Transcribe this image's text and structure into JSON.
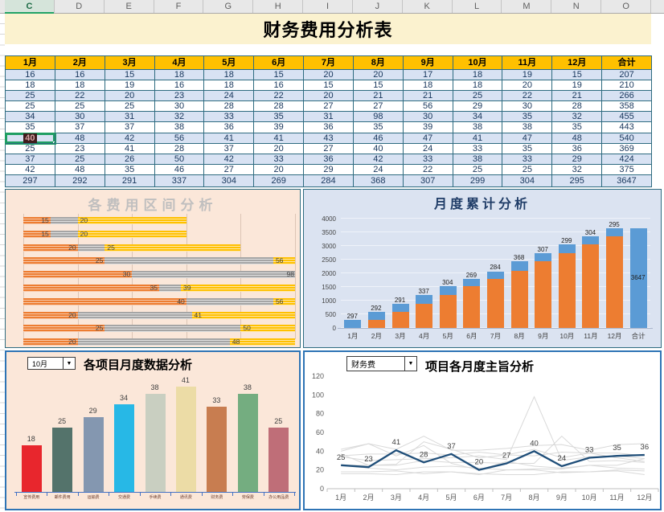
{
  "app": {
    "column_letters": [
      "C",
      "D",
      "E",
      "F",
      "G",
      "H",
      "I",
      "J",
      "K",
      "L",
      "M",
      "N",
      "O"
    ],
    "selected_column": "C"
  },
  "title": "财务费用分析表",
  "table": {
    "months": [
      "1月",
      "2月",
      "3月",
      "4月",
      "5月",
      "6月",
      "7月",
      "8月",
      "9月",
      "10月",
      "11月",
      "12月",
      "合计"
    ],
    "rows": [
      [
        16,
        16,
        15,
        18,
        18,
        15,
        20,
        20,
        17,
        18,
        19,
        15,
        207
      ],
      [
        18,
        18,
        19,
        16,
        18,
        16,
        15,
        15,
        18,
        18,
        20,
        19,
        210
      ],
      [
        25,
        22,
        20,
        23,
        24,
        22,
        20,
        21,
        21,
        25,
        22,
        21,
        266
      ],
      [
        25,
        25,
        25,
        30,
        28,
        28,
        27,
        27,
        56,
        29,
        30,
        28,
        358
      ],
      [
        34,
        30,
        31,
        32,
        33,
        35,
        31,
        98,
        30,
        34,
        35,
        32,
        455
      ],
      [
        35,
        37,
        37,
        38,
        36,
        39,
        36,
        35,
        39,
        38,
        38,
        35,
        443
      ],
      [
        40,
        48,
        42,
        56,
        41,
        41,
        43,
        46,
        47,
        41,
        47,
        48,
        540
      ],
      [
        25,
        23,
        41,
        28,
        37,
        20,
        27,
        40,
        24,
        33,
        35,
        36,
        369
      ],
      [
        37,
        25,
        26,
        50,
        42,
        33,
        36,
        42,
        33,
        38,
        33,
        29,
        424
      ],
      [
        42,
        48,
        35,
        46,
        27,
        20,
        29,
        24,
        22,
        25,
        25,
        32,
        375
      ]
    ],
    "totals": [
      297,
      292,
      291,
      337,
      304,
      269,
      284,
      368,
      307,
      299,
      304,
      295,
      3647
    ],
    "selected_cell": {
      "row_index": 6,
      "col_index": 0,
      "value": 40
    }
  },
  "chart_data": [
    {
      "type": "bar",
      "subtype": "horizontal-interval",
      "title": "各费用区间分析",
      "axis": {
        "min": 10,
        "max": 60,
        "step": 10,
        "gridlines": true
      },
      "series_colors": {
        "min_segment": "#ED7D31",
        "range_segment": "#A5A5A5",
        "beyond_segment": "#FFC000"
      },
      "rows": [
        {
          "min": 15,
          "max": 20
        },
        {
          "min": 15,
          "max": 20
        },
        {
          "min": 20,
          "max": 25
        },
        {
          "min": 25,
          "max": 56
        },
        {
          "min": 30,
          "max": 98
        },
        {
          "min": 35,
          "max": 39
        },
        {
          "min": 40,
          "max": 56
        },
        {
          "min": 20,
          "max": 41
        },
        {
          "min": 25,
          "max": 50
        },
        {
          "min": 20,
          "max": 48
        }
      ]
    },
    {
      "type": "bar",
      "subtype": "stacked-cumulative",
      "title": "月度累计分析",
      "categories": [
        "1月",
        "2月",
        "3月",
        "4月",
        "5月",
        "6月",
        "7月",
        "8月",
        "9月",
        "10月",
        "11月",
        "12月",
        "合计"
      ],
      "values": [
        297,
        292,
        291,
        337,
        304,
        269,
        284,
        368,
        307,
        299,
        304,
        295
      ],
      "grand_total": 3647,
      "ylim": [
        0,
        4000
      ],
      "ytick": 500,
      "yticks": [
        0,
        500,
        1000,
        1500,
        2000,
        2500,
        3000,
        3500,
        4000
      ],
      "colors": {
        "base": "#ED7D31",
        "value": "#5B9BD5"
      }
    },
    {
      "type": "bar",
      "title": "各项目月度数据分析",
      "selector_value": "10月",
      "categories": [
        "宣传费用",
        "邮件费用",
        "运输费",
        "交通费",
        "手续费",
        "通讯费",
        "财务费",
        "劳保费",
        "办公用品费"
      ],
      "values": [
        18,
        25,
        29,
        34,
        38,
        41,
        33,
        38,
        25
      ],
      "bar_colors": [
        "#e8262d",
        "#54736b",
        "#8497b0",
        "#27b8e6",
        "#c9cfc1",
        "#ecdca6",
        "#c87d50",
        "#74ad80",
        "#bf6e78"
      ],
      "ylim": [
        0,
        45
      ]
    },
    {
      "type": "line",
      "title": "项目各月度主旨分析",
      "selector_value": "财务费",
      "x": [
        "1月",
        "2月",
        "3月",
        "4月",
        "5月",
        "6月",
        "7月",
        "8月",
        "9月",
        "10月",
        "11月",
        "12月"
      ],
      "highlight": {
        "name": "财务费",
        "color": "#1F4E79",
        "values": [
          25,
          23,
          41,
          28,
          37,
          20,
          27,
          40,
          24,
          33,
          35,
          36
        ]
      },
      "background_series": [
        [
          16,
          16,
          15,
          18,
          18,
          15,
          20,
          20,
          17,
          18,
          19,
          15
        ],
        [
          18,
          18,
          19,
          16,
          18,
          16,
          15,
          15,
          18,
          18,
          20,
          19
        ],
        [
          25,
          22,
          20,
          23,
          24,
          22,
          20,
          21,
          21,
          25,
          22,
          21
        ],
        [
          25,
          25,
          25,
          30,
          28,
          28,
          27,
          27,
          56,
          29,
          30,
          28
        ],
        [
          34,
          30,
          31,
          32,
          33,
          35,
          31,
          98,
          30,
          34,
          35,
          32
        ],
        [
          35,
          37,
          37,
          38,
          36,
          39,
          36,
          35,
          39,
          38,
          38,
          35
        ],
        [
          40,
          48,
          42,
          56,
          41,
          41,
          43,
          46,
          47,
          41,
          47,
          48
        ],
        [
          37,
          25,
          26,
          50,
          42,
          33,
          36,
          42,
          33,
          38,
          33,
          29
        ],
        [
          42,
          48,
          35,
          46,
          27,
          20,
          29,
          24,
          22,
          25,
          25,
          32
        ]
      ],
      "background_color": "#d9d9d9",
      "ylim": [
        0,
        120
      ],
      "ytick": 20,
      "yticks": [
        0,
        20,
        40,
        60,
        80,
        100,
        120
      ]
    }
  ],
  "colors": {
    "header_fill": "#FFC000",
    "row_alt_fill": "#D8E2F3",
    "table_border": "#2E6B80",
    "title_fill": "#FBF2CF",
    "chart_peach_bg": "#FBE7D9",
    "chart_blue_bg": "#DBE3F1",
    "selection_green": "#1E9E62"
  }
}
